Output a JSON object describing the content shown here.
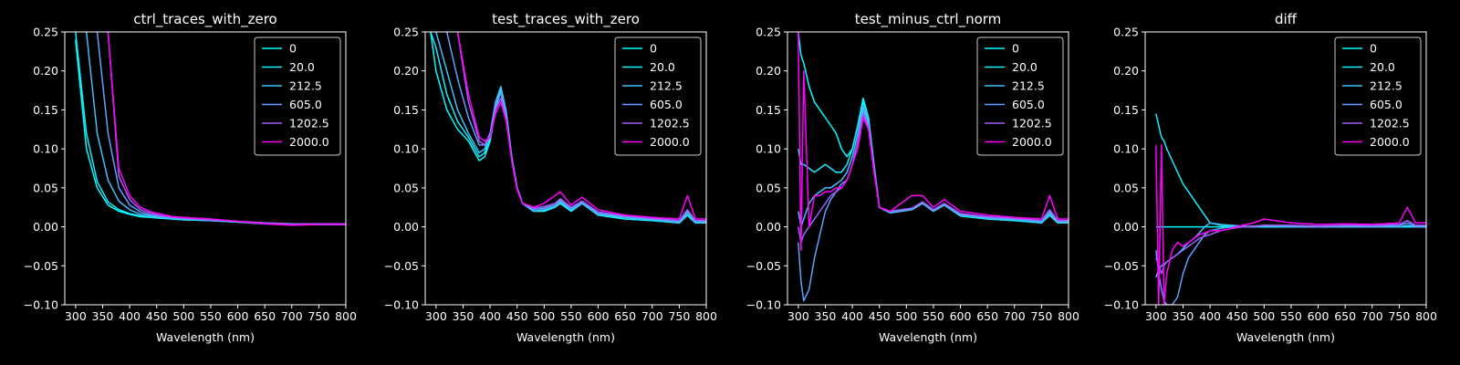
{
  "figure": {
    "background": "#000000",
    "foreground": "#ffffff"
  },
  "chart_data": [
    {
      "type": "line",
      "title": "ctrl_traces_with_zero",
      "xlabel": "Wavelength (nm)",
      "ylabel": "",
      "xlim": [
        280,
        800
      ],
      "ylim": [
        -0.1,
        0.25
      ],
      "xticks": [
        "300",
        "350",
        "400",
        "450",
        "500",
        "550",
        "600",
        "650",
        "700",
        "750",
        "800"
      ],
      "yticks": [
        "−0.10",
        "−0.05",
        "0.00",
        "0.05",
        "0.10",
        "0.15",
        "0.20",
        "0.25"
      ],
      "grid": false,
      "legend_position": "top-right",
      "x": [
        300,
        320,
        340,
        360,
        380,
        400,
        420,
        440,
        460,
        480,
        500,
        550,
        600,
        650,
        700,
        750,
        800
      ],
      "series": [
        {
          "name": "0",
          "color": "#00ffff",
          "values": [
            0.24,
            0.1,
            0.05,
            0.028,
            0.02,
            0.016,
            0.013,
            0.012,
            0.011,
            0.01,
            0.009,
            0.008,
            0.006,
            0.004,
            0.003,
            0.003,
            0.003
          ]
        },
        {
          "name": "20.0",
          "color": "#11eeff",
          "values": [
            0.25,
            0.12,
            0.058,
            0.032,
            0.022,
            0.017,
            0.014,
            0.012,
            0.011,
            0.01,
            0.009,
            0.008,
            0.006,
            0.004,
            0.003,
            0.003,
            0.003
          ]
        },
        {
          "name": "212.5",
          "color": "#40bfff",
          "values": [
            null,
            0.25,
            0.12,
            0.06,
            0.033,
            0.022,
            0.016,
            0.014,
            0.012,
            0.011,
            0.01,
            0.008,
            0.006,
            0.004,
            0.003,
            0.003,
            0.003
          ]
        },
        {
          "name": "605.0",
          "color": "#62a0ff",
          "values": [
            null,
            null,
            0.25,
            0.12,
            0.05,
            0.028,
            0.019,
            0.015,
            0.013,
            0.012,
            0.011,
            0.009,
            0.007,
            0.005,
            0.004,
            0.004,
            0.004
          ]
        },
        {
          "name": "1202.5",
          "color": "#a05fff",
          "values": [
            null,
            null,
            null,
            0.25,
            0.065,
            0.035,
            0.022,
            0.017,
            0.014,
            0.012,
            0.011,
            0.009,
            0.007,
            0.005,
            0.004,
            0.004,
            0.004
          ]
        },
        {
          "name": "2000.0",
          "color": "#ff00ff",
          "values": [
            null,
            null,
            null,
            0.25,
            0.075,
            0.04,
            0.025,
            0.019,
            0.016,
            0.013,
            0.012,
            0.01,
            0.007,
            0.004,
            0.002,
            0.003,
            0.003
          ]
        }
      ]
    },
    {
      "type": "line",
      "title": "test_traces_with_zero",
      "xlabel": "Wavelength (nm)",
      "ylabel": "",
      "xlim": [
        280,
        800
      ],
      "ylim": [
        -0.1,
        0.25
      ],
      "xticks": [
        "300",
        "350",
        "400",
        "450",
        "500",
        "550",
        "600",
        "650",
        "700",
        "750",
        "800"
      ],
      "yticks": [
        "−0.10",
        "−0.05",
        "0.00",
        "0.05",
        "0.10",
        "0.15",
        "0.20",
        "0.25"
      ],
      "grid": false,
      "legend_position": "top-right",
      "x": [
        290,
        300,
        320,
        340,
        360,
        380,
        390,
        400,
        410,
        420,
        430,
        440,
        450,
        460,
        470,
        480,
        500,
        520,
        530,
        550,
        570,
        600,
        650,
        700,
        750,
        765,
        780,
        800
      ],
      "series": [
        {
          "name": "0",
          "color": "#00ffff",
          "values": [
            0.25,
            0.2,
            0.15,
            0.125,
            0.11,
            0.085,
            0.09,
            0.11,
            0.15,
            0.175,
            0.14,
            0.09,
            0.05,
            0.03,
            0.025,
            0.02,
            0.02,
            0.025,
            0.03,
            0.02,
            0.03,
            0.015,
            0.01,
            0.008,
            0.005,
            0.015,
            0.005,
            0.005
          ]
        },
        {
          "name": "20.0",
          "color": "#11eeff",
          "values": [
            0.25,
            0.23,
            0.17,
            0.135,
            0.115,
            0.09,
            0.095,
            0.115,
            0.155,
            0.178,
            0.145,
            0.09,
            0.05,
            0.03,
            0.025,
            0.02,
            0.02,
            0.025,
            0.03,
            0.02,
            0.03,
            0.015,
            0.01,
            0.008,
            0.005,
            0.015,
            0.005,
            0.005
          ]
        },
        {
          "name": "212.5",
          "color": "#40bfff",
          "values": [
            null,
            0.25,
            0.2,
            0.15,
            0.12,
            0.095,
            0.1,
            0.12,
            0.16,
            0.18,
            0.148,
            0.09,
            0.05,
            0.03,
            0.025,
            0.02,
            0.022,
            0.026,
            0.032,
            0.022,
            0.03,
            0.016,
            0.012,
            0.009,
            0.006,
            0.018,
            0.006,
            0.006
          ]
        },
        {
          "name": "605.0",
          "color": "#62a0ff",
          "values": [
            null,
            null,
            0.25,
            0.19,
            0.14,
            0.105,
            0.105,
            0.12,
            0.155,
            0.172,
            0.142,
            0.088,
            0.05,
            0.03,
            0.026,
            0.022,
            0.024,
            0.028,
            0.034,
            0.024,
            0.032,
            0.018,
            0.013,
            0.01,
            0.007,
            0.02,
            0.007,
            0.007
          ]
        },
        {
          "name": "1202.5",
          "color": "#a05fff",
          "values": [
            null,
            null,
            null,
            0.25,
            0.16,
            0.11,
            0.105,
            0.115,
            0.15,
            0.165,
            0.138,
            0.085,
            0.048,
            0.03,
            0.027,
            0.024,
            0.026,
            0.03,
            0.036,
            0.025,
            0.033,
            0.019,
            0.014,
            0.011,
            0.008,
            0.022,
            0.008,
            0.008
          ]
        },
        {
          "name": "2000.0",
          "color": "#ff00ff",
          "values": [
            null,
            null,
            null,
            0.25,
            0.17,
            0.115,
            0.11,
            0.115,
            0.145,
            0.16,
            0.135,
            0.085,
            0.048,
            0.03,
            0.028,
            0.025,
            0.03,
            0.04,
            0.045,
            0.028,
            0.038,
            0.022,
            0.015,
            0.012,
            0.01,
            0.04,
            0.01,
            0.01
          ]
        }
      ]
    },
    {
      "type": "line",
      "title": "test_minus_ctrl_norm",
      "xlabel": "Wavelength (nm)",
      "ylabel": "",
      "xlim": [
        280,
        800
      ],
      "ylim": [
        -0.1,
        0.25
      ],
      "xticks": [
        "300",
        "350",
        "400",
        "450",
        "500",
        "550",
        "600",
        "650",
        "700",
        "750",
        "800"
      ],
      "yticks": [
        "−0.10",
        "−0.05",
        "0.00",
        "0.05",
        "0.10",
        "0.15",
        "0.20",
        "0.25"
      ],
      "grid": false,
      "legend_position": "top-right",
      "x": [
        300,
        305,
        310,
        320,
        330,
        340,
        350,
        360,
        370,
        380,
        390,
        400,
        410,
        420,
        430,
        440,
        450,
        470,
        490,
        510,
        530,
        550,
        570,
        600,
        650,
        700,
        750,
        765,
        780,
        800
      ],
      "series": [
        {
          "name": "0",
          "color": "#00ffff",
          "values": [
            0.25,
            0.22,
            0.21,
            0.18,
            0.16,
            0.15,
            0.14,
            0.13,
            0.12,
            0.1,
            0.09,
            0.1,
            0.13,
            0.165,
            0.14,
            0.08,
            0.025,
            0.018,
            0.02,
            0.022,
            0.03,
            0.02,
            0.028,
            0.014,
            0.01,
            0.008,
            0.005,
            0.015,
            0.005,
            0.005
          ]
        },
        {
          "name": "20.0",
          "color": "#11eeff",
          "values": [
            0.1,
            0.08,
            0.08,
            0.075,
            0.07,
            0.075,
            0.08,
            0.075,
            0.07,
            0.07,
            0.08,
            0.1,
            0.13,
            0.16,
            0.14,
            0.08,
            0.025,
            0.018,
            0.02,
            0.022,
            0.03,
            0.02,
            0.028,
            0.014,
            0.01,
            0.008,
            0.005,
            0.015,
            0.005,
            0.005
          ]
        },
        {
          "name": "212.5",
          "color": "#40bfff",
          "values": [
            0.02,
            0.0,
            0.01,
            0.03,
            0.04,
            0.045,
            0.05,
            0.05,
            0.055,
            0.06,
            0.07,
            0.09,
            0.12,
            0.155,
            0.135,
            0.078,
            0.025,
            0.018,
            0.02,
            0.022,
            0.03,
            0.02,
            0.028,
            0.015,
            0.011,
            0.009,
            0.006,
            0.018,
            0.006,
            0.006
          ]
        },
        {
          "name": "605.0",
          "color": "#62a0ff",
          "values": [
            -0.02,
            -0.07,
            -0.095,
            -0.08,
            -0.04,
            -0.01,
            0.02,
            0.035,
            0.045,
            0.055,
            0.06,
            0.08,
            0.11,
            0.15,
            0.13,
            0.075,
            0.025,
            0.019,
            0.021,
            0.023,
            0.031,
            0.021,
            0.029,
            0.016,
            0.012,
            0.01,
            0.007,
            0.02,
            0.007,
            0.007
          ]
        },
        {
          "name": "1202.5",
          "color": "#a05fff",
          "values": [
            0.0,
            -0.02,
            -0.01,
            0.0,
            0.01,
            0.02,
            0.03,
            0.04,
            0.045,
            0.05,
            0.06,
            0.08,
            0.11,
            0.145,
            0.128,
            0.073,
            0.025,
            0.02,
            0.022,
            0.024,
            0.032,
            0.022,
            0.03,
            0.017,
            0.013,
            0.011,
            0.008,
            0.022,
            0.008,
            0.008
          ]
        },
        {
          "name": "2000.0",
          "color": "#ff00ff",
          "values": [
            0.25,
            -0.03,
            0.2,
            0.0,
            0.04,
            0.04,
            0.045,
            0.045,
            0.05,
            0.05,
            0.06,
            0.08,
            0.1,
            0.14,
            0.125,
            0.07,
            0.025,
            0.02,
            0.03,
            0.04,
            0.04,
            0.025,
            0.035,
            0.02,
            0.015,
            0.012,
            0.01,
            0.04,
            0.01,
            0.01
          ]
        }
      ]
    },
    {
      "type": "line",
      "title": "diff",
      "xlabel": "Wavelength (nm)",
      "ylabel": "",
      "xlim": [
        280,
        800
      ],
      "ylim": [
        -0.1,
        0.25
      ],
      "xticks": [
        "300",
        "350",
        "400",
        "450",
        "500",
        "550",
        "600",
        "650",
        "700",
        "750",
        "800"
      ],
      "yticks": [
        "−0.10",
        "−0.05",
        "0.00",
        "0.05",
        "0.10",
        "0.15",
        "0.20",
        "0.25"
      ],
      "grid": false,
      "legend_position": "top-right",
      "x": [
        300,
        305,
        310,
        315,
        320,
        330,
        340,
        350,
        360,
        370,
        380,
        390,
        400,
        420,
        440,
        460,
        480,
        500,
        550,
        600,
        650,
        700,
        750,
        765,
        780,
        800
      ],
      "series": [
        {
          "name": "0",
          "color": "#00ffff",
          "values": [
            0,
            0,
            0,
            0,
            0,
            0,
            0,
            0,
            0,
            0,
            0,
            0,
            0,
            0,
            0,
            0,
            0,
            0,
            0,
            0,
            0,
            0,
            0,
            0,
            0,
            0
          ]
        },
        {
          "name": "20.0",
          "color": "#11eeff",
          "values": [
            0.145,
            0.13,
            0.115,
            0.11,
            0.1,
            0.085,
            0.07,
            0.055,
            0.045,
            0.035,
            0.025,
            0.015,
            0.005,
            0.002,
            0.001,
            0.0,
            0.001,
            0.0,
            0.0,
            0.0,
            0.0,
            0.0,
            0.0,
            0.0,
            0.0,
            0.0
          ]
        },
        {
          "name": "212.5",
          "color": "#40bfff",
          "values": [
            -0.065,
            -0.055,
            -0.05,
            -0.048,
            -0.045,
            -0.04,
            -0.035,
            -0.028,
            -0.02,
            -0.015,
            -0.008,
            0.0,
            0.005,
            0.003,
            0.002,
            0.001,
            0.0,
            0.001,
            0.0,
            0.0,
            0.0,
            0.0,
            0.0,
            0.002,
            0.0,
            0.0
          ]
        },
        {
          "name": "605.0",
          "color": "#62a0ff",
          "values": [
            -0.03,
            -0.06,
            -0.08,
            -0.095,
            -0.1,
            -0.1,
            -0.09,
            -0.06,
            -0.04,
            -0.03,
            -0.02,
            -0.01,
            -0.005,
            -0.002,
            0.0,
            0.001,
            0.0,
            0.002,
            0.001,
            0.0,
            0.001,
            0.0,
            0.002,
            0.005,
            0.001,
            0.001
          ]
        },
        {
          "name": "1202.5",
          "color": "#a05fff",
          "values": [
            -0.04,
            -0.05,
            -0.06,
            -0.05,
            -0.045,
            -0.04,
            -0.035,
            -0.03,
            -0.025,
            -0.02,
            -0.015,
            -0.012,
            -0.01,
            -0.005,
            -0.002,
            0.0,
            0.001,
            0.002,
            0.002,
            0.001,
            0.002,
            0.002,
            0.003,
            0.008,
            0.002,
            0.002
          ]
        },
        {
          "name": "2000.0",
          "color": "#ff00ff",
          "values": [
            0.105,
            -0.1,
            0.105,
            -0.1,
            -0.06,
            -0.03,
            -0.02,
            -0.025,
            -0.02,
            -0.015,
            -0.01,
            -0.008,
            -0.005,
            -0.005,
            -0.002,
            0.002,
            0.005,
            0.01,
            0.005,
            0.003,
            0.004,
            0.003,
            0.005,
            0.025,
            0.005,
            0.005
          ]
        }
      ]
    }
  ]
}
